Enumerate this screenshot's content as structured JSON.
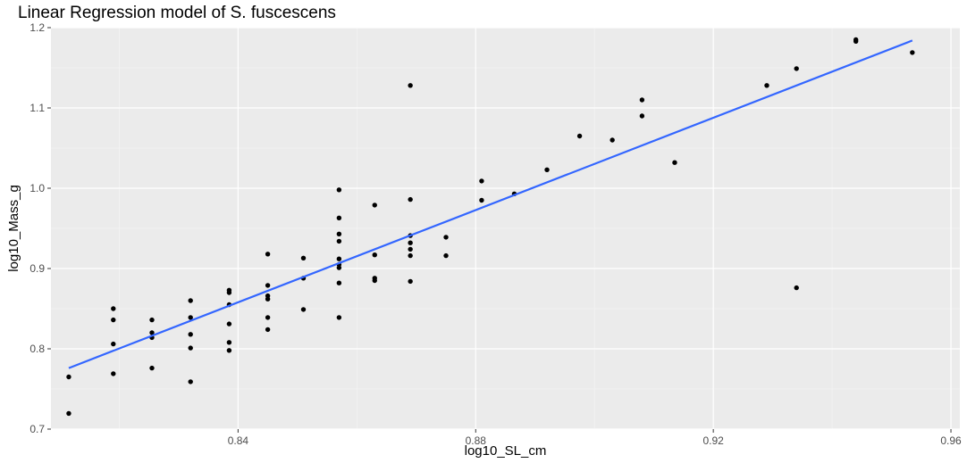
{
  "chart_data": {
    "type": "scatter",
    "title": "Linear Regression model of S. fuscescens",
    "xlabel": "log10_SL_cm",
    "ylabel": "log10_Mass_g",
    "xlim": [
      0.8085,
      0.9615
    ],
    "ylim": [
      0.7,
      1.2
    ],
    "x_ticks": [
      {
        "value": 0.84,
        "label": "0.84"
      },
      {
        "value": 0.88,
        "label": "0.88"
      },
      {
        "value": 0.92,
        "label": "0.92"
      },
      {
        "value": 0.96,
        "label": "0.96"
      }
    ],
    "y_ticks": [
      {
        "value": 0.7,
        "label": "0.7"
      },
      {
        "value": 0.8,
        "label": "0.8"
      },
      {
        "value": 0.9,
        "label": "0.9"
      },
      {
        "value": 1.0,
        "label": "1.0"
      },
      {
        "value": 1.1,
        "label": "1.1"
      },
      {
        "value": 1.2,
        "label": "1.2"
      }
    ],
    "grid": true,
    "points": [
      {
        "x": 0.8115,
        "y": 0.7195
      },
      {
        "x": 0.8115,
        "y": 0.765
      },
      {
        "x": 0.819,
        "y": 0.769
      },
      {
        "x": 0.819,
        "y": 0.806
      },
      {
        "x": 0.819,
        "y": 0.836
      },
      {
        "x": 0.819,
        "y": 0.85
      },
      {
        "x": 0.8255,
        "y": 0.776
      },
      {
        "x": 0.8255,
        "y": 0.814
      },
      {
        "x": 0.8255,
        "y": 0.82
      },
      {
        "x": 0.8255,
        "y": 0.836
      },
      {
        "x": 0.832,
        "y": 0.759
      },
      {
        "x": 0.832,
        "y": 0.801
      },
      {
        "x": 0.832,
        "y": 0.818
      },
      {
        "x": 0.832,
        "y": 0.839
      },
      {
        "x": 0.832,
        "y": 0.86
      },
      {
        "x": 0.8385,
        "y": 0.798
      },
      {
        "x": 0.8385,
        "y": 0.808
      },
      {
        "x": 0.8385,
        "y": 0.831
      },
      {
        "x": 0.8385,
        "y": 0.855
      },
      {
        "x": 0.8385,
        "y": 0.87
      },
      {
        "x": 0.8385,
        "y": 0.873
      },
      {
        "x": 0.845,
        "y": 0.824
      },
      {
        "x": 0.845,
        "y": 0.839
      },
      {
        "x": 0.845,
        "y": 0.862
      },
      {
        "x": 0.845,
        "y": 0.866
      },
      {
        "x": 0.845,
        "y": 0.879
      },
      {
        "x": 0.845,
        "y": 0.918
      },
      {
        "x": 0.851,
        "y": 0.849
      },
      {
        "x": 0.851,
        "y": 0.888
      },
      {
        "x": 0.851,
        "y": 0.913
      },
      {
        "x": 0.857,
        "y": 0.839
      },
      {
        "x": 0.857,
        "y": 0.882
      },
      {
        "x": 0.857,
        "y": 0.901
      },
      {
        "x": 0.857,
        "y": 0.905
      },
      {
        "x": 0.857,
        "y": 0.912
      },
      {
        "x": 0.857,
        "y": 0.934
      },
      {
        "x": 0.857,
        "y": 0.943
      },
      {
        "x": 0.857,
        "y": 0.963
      },
      {
        "x": 0.857,
        "y": 0.998
      },
      {
        "x": 0.863,
        "y": 0.885
      },
      {
        "x": 0.863,
        "y": 0.888
      },
      {
        "x": 0.863,
        "y": 0.917
      },
      {
        "x": 0.863,
        "y": 0.979
      },
      {
        "x": 0.869,
        "y": 0.884
      },
      {
        "x": 0.869,
        "y": 0.916
      },
      {
        "x": 0.869,
        "y": 0.924
      },
      {
        "x": 0.869,
        "y": 0.932
      },
      {
        "x": 0.869,
        "y": 0.941
      },
      {
        "x": 0.869,
        "y": 0.986
      },
      {
        "x": 0.869,
        "y": 1.128
      },
      {
        "x": 0.875,
        "y": 0.916
      },
      {
        "x": 0.875,
        "y": 0.939
      },
      {
        "x": 0.881,
        "y": 0.985
      },
      {
        "x": 0.881,
        "y": 1.009
      },
      {
        "x": 0.8865,
        "y": 0.993
      },
      {
        "x": 0.892,
        "y": 1.023
      },
      {
        "x": 0.8975,
        "y": 1.065
      },
      {
        "x": 0.903,
        "y": 1.06
      },
      {
        "x": 0.908,
        "y": 1.09
      },
      {
        "x": 0.908,
        "y": 1.11
      },
      {
        "x": 0.9135,
        "y": 1.032
      },
      {
        "x": 0.929,
        "y": 1.128
      },
      {
        "x": 0.934,
        "y": 0.876
      },
      {
        "x": 0.934,
        "y": 1.149
      },
      {
        "x": 0.944,
        "y": 1.183
      },
      {
        "x": 0.944,
        "y": 1.185
      },
      {
        "x": 0.9535,
        "y": 1.169
      }
    ],
    "regression_line": {
      "x": [
        0.8115,
        0.9535
      ],
      "y": [
        0.776,
        1.184
      ]
    },
    "colors": {
      "panel": "#ebebeb",
      "grid_major": "#ffffff",
      "grid_minor": "#f5f5f5",
      "point": "#000000",
      "line": "#3366ff",
      "tick_text": "#4d4d4d",
      "tick_mark": "#333333"
    }
  }
}
